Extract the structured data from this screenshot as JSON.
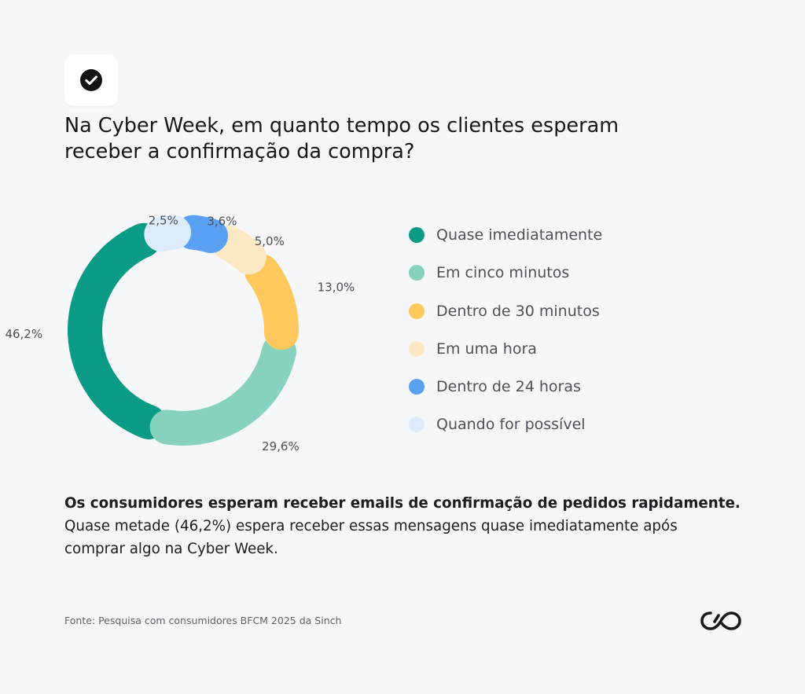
{
  "header": {
    "title_line1": "Na Cyber Week, em quanto tempo os clientes esperam",
    "title_line2": "receber a confirmação da compra?",
    "badge_icon": "check-circle-icon"
  },
  "chart_data": {
    "type": "pie",
    "style": "donut",
    "categories": [
      "Quase imediatamente",
      "Em cinco minutos",
      "Dentro de 30 minutos",
      "Em uma hora",
      "Dentro de 24 horas",
      "Quando for possível"
    ],
    "values": [
      46.2,
      29.6,
      13.0,
      5.0,
      3.6,
      2.5
    ],
    "value_labels": [
      "46,2%",
      "29,6%",
      "13,0%",
      "5,0%",
      "3,6%",
      "2,5%"
    ],
    "colors": [
      "#0a9a86",
      "#86d2bf",
      "#fec85c",
      "#fde8c4",
      "#5aa1f4",
      "#dcecfb"
    ],
    "legend_position": "right"
  },
  "summary": {
    "headline": "Os consumidores esperam receber emails de confirmação de pedidos rapidamente.",
    "body": "Quase metade (46,2%) espera receber essas mensagens quase imediatamente após comprar algo na Cyber Week."
  },
  "footer": {
    "source": "Fonte: Pesquisa com consumidores BFCM 2025 da Sinch",
    "logo_icon": "sinch-logo-icon"
  }
}
